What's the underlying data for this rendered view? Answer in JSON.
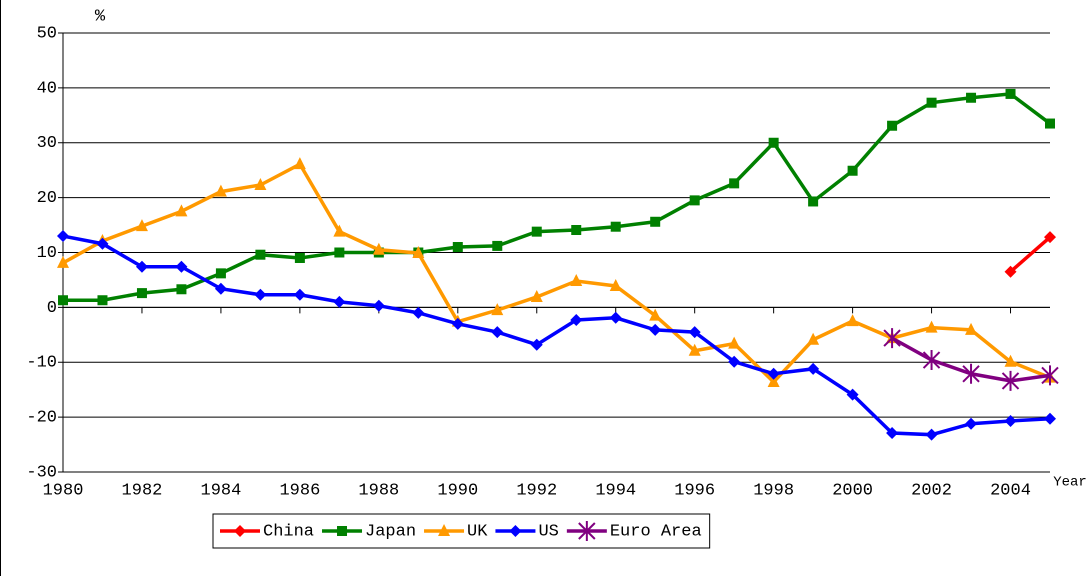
{
  "chart_data": {
    "type": "line",
    "y_label": "%",
    "x_label": "Year",
    "x": [
      1980,
      1981,
      1982,
      1983,
      1984,
      1985,
      1986,
      1987,
      1988,
      1989,
      1990,
      1991,
      1992,
      1993,
      1994,
      1995,
      1996,
      1997,
      1998,
      1999,
      2000,
      2001,
      2002,
      2003,
      2004,
      2005
    ],
    "xlim": [
      1980,
      2005
    ],
    "xticks": [
      1980,
      1982,
      1984,
      1986,
      1988,
      1990,
      1992,
      1994,
      1996,
      1998,
      2000,
      2002,
      2004
    ],
    "ylim": [
      -30,
      50
    ],
    "yticks": [
      -30,
      -20,
      -10,
      0,
      10,
      20,
      30,
      40,
      50
    ],
    "grid": true,
    "legend": "bottom",
    "series": [
      {
        "name": "China",
        "color": "#ff0000",
        "marker": "diamond",
        "values": [
          null,
          null,
          null,
          null,
          null,
          null,
          null,
          null,
          null,
          null,
          null,
          null,
          null,
          null,
          null,
          null,
          null,
          null,
          null,
          null,
          null,
          null,
          null,
          null,
          6.5,
          12.8
        ]
      },
      {
        "name": "Japan",
        "color": "#008000",
        "marker": "square",
        "values": [
          1.3,
          1.3,
          2.6,
          3.3,
          6.2,
          9.6,
          9.0,
          10.0,
          10.0,
          10.0,
          11.0,
          11.2,
          13.8,
          14.1,
          14.7,
          15.6,
          19.5,
          22.6,
          30.0,
          19.3,
          24.9,
          33.1,
          37.3,
          38.2,
          38.9,
          33.5
        ]
      },
      {
        "name": "UK",
        "color": "#ff9900",
        "marker": "triangle",
        "values": [
          8.1,
          12.1,
          14.8,
          17.5,
          21.1,
          22.3,
          26.1,
          13.8,
          10.5,
          9.9,
          -2.6,
          -0.5,
          1.9,
          4.8,
          3.9,
          -1.5,
          -7.9,
          -6.6,
          -13.6,
          -5.9,
          -2.5,
          -5.6,
          -3.7,
          -4.1,
          -9.9,
          -12.8
        ]
      },
      {
        "name": "US",
        "color": "#0000ff",
        "marker": "diamond",
        "values": [
          13.0,
          11.6,
          7.4,
          7.4,
          3.4,
          2.3,
          2.3,
          1.0,
          0.3,
          -1.0,
          -3.0,
          -4.5,
          -6.8,
          -2.3,
          -1.9,
          -4.1,
          -4.5,
          -9.9,
          -12.1,
          -11.2,
          -15.9,
          -22.9,
          -23.2,
          -21.2,
          -20.7,
          -20.3
        ]
      },
      {
        "name": "Euro Area",
        "color": "#800080",
        "marker": "asterisk",
        "values": [
          null,
          null,
          null,
          null,
          null,
          null,
          null,
          null,
          null,
          null,
          null,
          null,
          null,
          null,
          null,
          null,
          null,
          null,
          null,
          null,
          null,
          -5.6,
          -9.6,
          -12.1,
          -13.4,
          -12.4
        ]
      }
    ]
  }
}
